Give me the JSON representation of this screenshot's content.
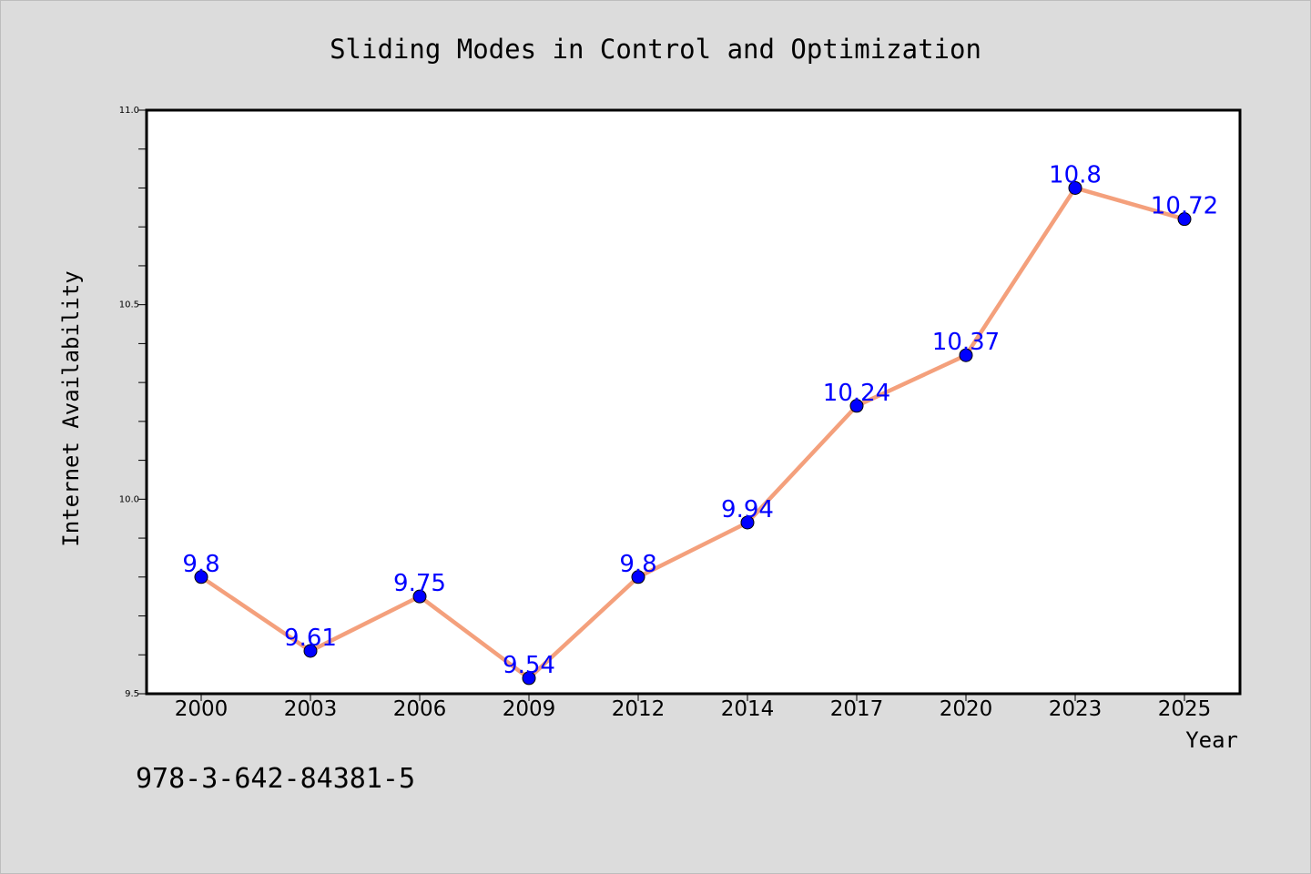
{
  "chart_data": {
    "type": "line",
    "title": "Sliding Modes in Control and Optimization",
    "xlabel": "Year",
    "ylabel": "Internet Availability",
    "categories": [
      "2000",
      "2003",
      "2006",
      "2009",
      "2012",
      "2014",
      "2017",
      "2020",
      "2023",
      "2025"
    ],
    "series": [
      {
        "values": [
          9.8,
          9.61,
          9.75,
          9.54,
          9.8,
          9.94,
          10.24,
          10.37,
          10.8,
          10.72
        ],
        "labels": [
          "9.8",
          "9.61",
          "9.75",
          "9.54",
          "9.8",
          "9.94",
          "10.24",
          "10.37",
          "10.8",
          "10.72"
        ]
      }
    ],
    "ylim": [
      9.5,
      11.0
    ],
    "yticks": [
      "9.5",
      "10.0",
      "10.5",
      "11.0"
    ],
    "grid": false,
    "line_color": "#f4a07c",
    "marker_color": "#0000ff",
    "label_color": "#0000ff"
  },
  "footer": {
    "isbn": "978-3-642-84381-5"
  }
}
